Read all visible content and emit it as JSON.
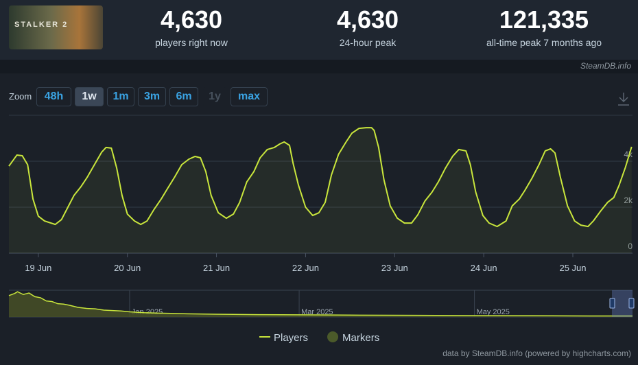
{
  "header": {
    "logo_text": "STALKER 2",
    "stats": [
      {
        "value": "4,630",
        "label": "players right now"
      },
      {
        "value": "4,630",
        "label": "24-hour peak"
      },
      {
        "value": "121,335",
        "label": "all-time peak 7 months ago"
      }
    ]
  },
  "source": "SteamDB.info",
  "zoom": {
    "label": "Zoom",
    "buttons": [
      "48h",
      "1w",
      "1m",
      "3m",
      "6m",
      "1y",
      "max"
    ],
    "active_index": 1,
    "disabled_indices": [
      5
    ]
  },
  "chart_data": [
    {
      "type": "line",
      "x": [
        18.67,
        18.76,
        18.82,
        18.88,
        18.94,
        19.0,
        19.07,
        19.19,
        19.26,
        19.34,
        19.4,
        19.48,
        19.55,
        19.63,
        19.71,
        19.76,
        19.82,
        19.88,
        19.94,
        20.0,
        20.08,
        20.15,
        20.22,
        20.3,
        20.38,
        20.45,
        20.53,
        20.61,
        20.69,
        20.76,
        20.82,
        20.88,
        20.94,
        21.02,
        21.11,
        21.19,
        21.26,
        21.34,
        21.42,
        21.49,
        21.57,
        21.65,
        21.71,
        21.76,
        21.82,
        21.86,
        21.92,
        22.0,
        22.08,
        22.15,
        22.22,
        22.29,
        22.37,
        22.45,
        22.52,
        22.6,
        22.68,
        22.74,
        22.77,
        22.82,
        22.88,
        22.95,
        23.03,
        23.11,
        23.19,
        23.26,
        23.34,
        23.42,
        23.49,
        23.57,
        23.65,
        23.72,
        23.8,
        23.85,
        23.91,
        23.99,
        24.06,
        24.15,
        24.25,
        24.32,
        24.4,
        24.46,
        24.54,
        24.62,
        24.69,
        24.75,
        24.8,
        24.86,
        24.94,
        25.02,
        25.09,
        25.17,
        25.23,
        25.31,
        25.39,
        25.46,
        25.52,
        25.59,
        25.66
      ],
      "series": [
        {
          "name": "Players",
          "color": "#c9e63c",
          "values": [
            3790,
            4270,
            4240,
            3850,
            2360,
            1610,
            1400,
            1250,
            1460,
            2060,
            2510,
            2900,
            3310,
            3850,
            4390,
            4600,
            4570,
            3700,
            2510,
            1700,
            1400,
            1250,
            1400,
            1910,
            2360,
            2810,
            3310,
            3850,
            4090,
            4210,
            4150,
            3550,
            2510,
            1760,
            1520,
            1700,
            2210,
            3100,
            3550,
            4150,
            4510,
            4600,
            4750,
            4840,
            4690,
            3910,
            2960,
            2000,
            1640,
            1760,
            2210,
            3400,
            4300,
            4810,
            5220,
            5430,
            5460,
            5460,
            5340,
            4600,
            3190,
            2060,
            1520,
            1310,
            1310,
            1670,
            2270,
            2660,
            3100,
            3700,
            4210,
            4510,
            4450,
            3850,
            2660,
            1640,
            1310,
            1160,
            1400,
            2060,
            2360,
            2720,
            3250,
            3850,
            4450,
            4540,
            4360,
            3310,
            2060,
            1400,
            1220,
            1160,
            1400,
            1820,
            2210,
            2420,
            2960,
            3730,
            4630
          ]
        }
      ],
      "markers": {
        "name": "Markers",
        "color": "#4b5a2a"
      },
      "xlim": [
        18.67,
        25.67
      ],
      "xticks": [
        {
          "value": 19,
          "label": "19 Jun"
        },
        {
          "value": 20,
          "label": "20 Jun"
        },
        {
          "value": 21,
          "label": "21 Jun"
        },
        {
          "value": 22,
          "label": "22 Jun"
        },
        {
          "value": 23,
          "label": "23 Jun"
        },
        {
          "value": 24,
          "label": "24 Jun"
        },
        {
          "value": 25,
          "label": "25 Jun"
        }
      ],
      "ylim": [
        0,
        6000
      ],
      "yticks": [
        0,
        {
          "value": 2000,
          "label": "2k"
        },
        {
          "value": 4000,
          "label": "4k"
        }
      ],
      "grid": true
    },
    {
      "type": "area",
      "x": [
        -42,
        -40,
        -39,
        -37,
        -35,
        -33,
        -31,
        -29,
        -27,
        -25,
        -23,
        -21,
        -18,
        -15,
        -12,
        -9,
        -6,
        -3,
        0,
        5,
        10,
        20,
        30,
        45,
        60,
        80,
        100,
        120,
        140,
        160,
        175
      ],
      "values": [
        100000,
        110000,
        118000,
        105000,
        112000,
        95000,
        90000,
        75000,
        72000,
        62000,
        60000,
        55000,
        45000,
        40000,
        38000,
        32000,
        30000,
        28000,
        24000,
        20000,
        18000,
        15000,
        13000,
        11000,
        10000,
        8500,
        7500,
        6500,
        6000,
        5000,
        4600
      ],
      "color": "#c9e63c",
      "fill_color": "#4a5326",
      "xlim": [
        -42,
        175
      ],
      "ylim": [
        0,
        125000
      ],
      "xticks": [
        {
          "value": 0,
          "label": "Jan 2025"
        },
        {
          "value": 59,
          "label": "Mar 2025"
        },
        {
          "value": 120,
          "label": "May 2025"
        }
      ],
      "grid": true
    }
  ],
  "credit": "data by SteamDB.info (powered by highcharts.com)"
}
